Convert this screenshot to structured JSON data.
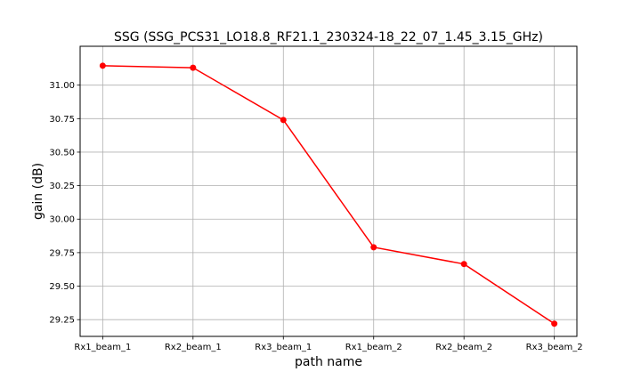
{
  "chart_data": {
    "type": "line",
    "title": "SSG (SSG_PCS31_LO18.8_RF21.1_230324-18_22_07_1.45_3.15_GHz)",
    "xlabel": "path name",
    "ylabel": "gain (dB)",
    "categories": [
      "Rx1_beam_1",
      "Rx2_beam_1",
      "Rx3_beam_1",
      "Rx1_beam_2",
      "Rx2_beam_2",
      "Rx3_beam_2"
    ],
    "values": [
      31.145,
      31.13,
      30.74,
      29.79,
      29.665,
      29.22
    ],
    "yticks": [
      "29.25",
      "29.50",
      "29.75",
      "30.00",
      "30.25",
      "30.50",
      "30.75",
      "31.00"
    ],
    "ylim": [
      29.125,
      31.29
    ],
    "grid": true,
    "color": "#ff0000"
  }
}
